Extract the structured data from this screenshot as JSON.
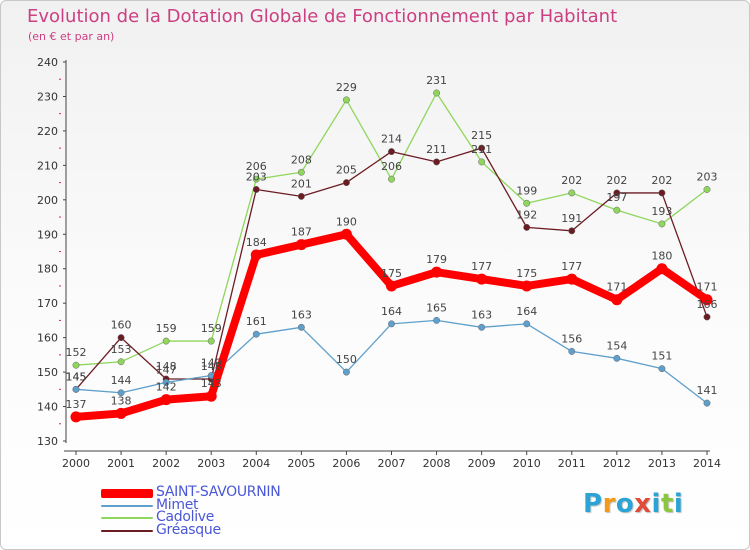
{
  "chart_data": {
    "type": "line",
    "title": "Evolution de la Dotation Globale de Fonctionnement par Habitant",
    "subtitle": "(en € et par an)",
    "xlabel": "",
    "ylabel": "",
    "ylim": [
      130,
      240
    ],
    "yticks": [
      130,
      140,
      150,
      160,
      170,
      180,
      190,
      200,
      210,
      220,
      230,
      240
    ],
    "x": [
      "2000",
      "2001",
      "2002",
      "2003",
      "2004",
      "2005",
      "2006",
      "2007",
      "2008",
      "2009",
      "2010",
      "2011",
      "2012",
      "2013",
      "2014"
    ],
    "grid": false,
    "legend_position": "bottom-left",
    "series": [
      {
        "name": "SAINT-SAVOURNIN",
        "color": "#ff0000",
        "values": [
          137,
          138,
          142,
          143,
          184,
          187,
          190,
          175,
          179,
          177,
          175,
          177,
          171,
          180,
          171
        ]
      },
      {
        "name": "Mimet",
        "color": "#5e9fcb",
        "values": [
          145,
          144,
          147,
          149,
          161,
          163,
          150,
          164,
          165,
          163,
          164,
          156,
          154,
          151,
          141
        ]
      },
      {
        "name": "Cadolive",
        "color": "#8fd65d",
        "values": [
          152,
          153,
          159,
          159,
          206,
          208,
          229,
          206,
          231,
          211,
          199,
          202,
          197,
          193,
          203
        ]
      },
      {
        "name": "Gréasque",
        "color": "#6b1c23",
        "values": [
          145,
          160,
          148,
          148,
          203,
          201,
          205,
          214,
          211,
          215,
          192,
          191,
          202,
          202,
          166
        ]
      }
    ]
  },
  "logo": {
    "letters": [
      "P",
      "r",
      "o",
      "x",
      "i",
      "t",
      "i"
    ],
    "colors": [
      "#2aa3d6",
      "#f29a1b",
      "#2aa3d6",
      "#e04b3a",
      "#2aa3d6",
      "#8cc63f",
      "#2aa3d6"
    ]
  }
}
